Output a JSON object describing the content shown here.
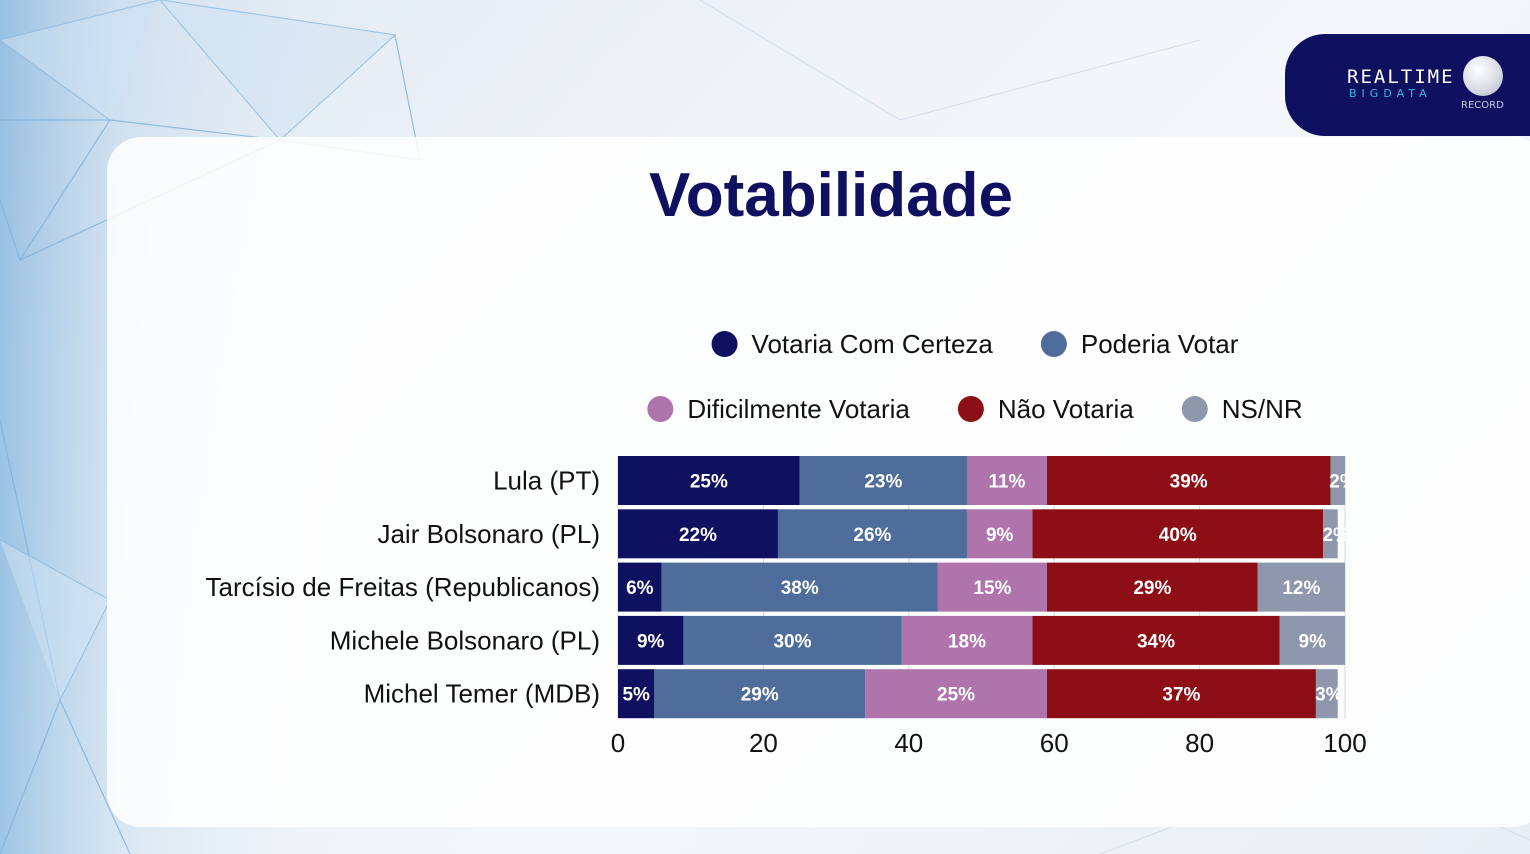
{
  "branding": {
    "logo_main": "REALTIME",
    "logo_sub": "BIGDATA",
    "partner": "RECORD"
  },
  "chart_data": {
    "type": "bar",
    "orientation": "horizontal",
    "stacked": true,
    "title": "Votabilidade",
    "categories": [
      "Lula (PT)",
      "Jair Bolsonaro (PL)",
      "Tarcísio de Freitas (Republicanos)",
      "Michele Bolsonaro (PL)",
      "Michel Temer (MDB)"
    ],
    "series": [
      {
        "name": "Votaria Com Certeza",
        "color": "#0f1160",
        "values": [
          25,
          22,
          6,
          9,
          5
        ]
      },
      {
        "name": "Poderia Votar",
        "color": "#4f6d9a",
        "values": [
          23,
          26,
          38,
          30,
          29
        ]
      },
      {
        "name": "Dificilmente Votaria",
        "color": "#b074ad",
        "values": [
          11,
          9,
          15,
          18,
          25
        ]
      },
      {
        "name": "Não Votaria",
        "color": "#8e0e16",
        "values": [
          39,
          40,
          29,
          34,
          37
        ]
      },
      {
        "name": "NS/NR",
        "color": "#8e97ac",
        "values": [
          2,
          2,
          12,
          9,
          3
        ]
      }
    ],
    "xlim": [
      0,
      100
    ],
    "xticks": [
      0,
      20,
      40,
      60,
      80,
      100
    ],
    "grid": true,
    "legend_position": "top"
  }
}
